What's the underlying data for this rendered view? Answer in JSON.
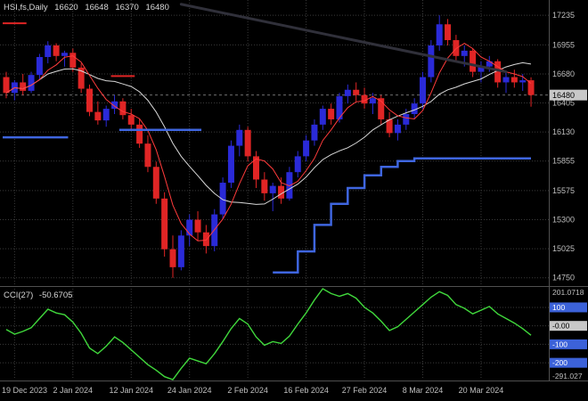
{
  "header": {
    "symbol": "HSI,fs,Daily",
    "open": "16620",
    "high": "16648",
    "low": "16370",
    "close": "16480"
  },
  "indicator": {
    "label": "CCI(27)",
    "value": "-50.6705"
  },
  "colors": {
    "background": "#000000",
    "grid": "#3a3a3a",
    "bull": "#2a2ad8",
    "bear": "#e02525",
    "ma_fast": "#ff3b3b",
    "ma_slow": "#d9d9d9",
    "stop_line": "#3f66e0",
    "trendline": "#30303a",
    "cci_line": "#40d83c",
    "axis_text": "#bfbfbf",
    "price_box_bg": "#c8c8c8",
    "level_box_bg": "#3c62d9"
  },
  "chart_data": {
    "type": "candlestick",
    "title": "HSI,fs,Daily",
    "price_axis": {
      "range": [
        14680,
        17380
      ],
      "labels": [
        17235,
        16955,
        16680,
        16405,
        16130,
        15855,
        15575,
        15300,
        15025,
        14750
      ],
      "current": 16480,
      "current_label": "16480"
    },
    "x_ticks": [
      {
        "index": 1,
        "label": "19 Dec 2023"
      },
      {
        "index": 8,
        "label": "2 Jan 2024"
      },
      {
        "index": 15,
        "label": "12 Jan 2024"
      },
      {
        "index": 22,
        "label": "24 Jan 2024"
      },
      {
        "index": 29,
        "label": "2 Feb 2024"
      },
      {
        "index": 36,
        "label": "16 Feb 2024"
      },
      {
        "index": 43,
        "label": "27 Feb 2024"
      },
      {
        "index": 50,
        "label": "8 Mar 2024"
      },
      {
        "index": 57,
        "label": "20 Mar 2024"
      }
    ],
    "candles": [
      [
        16650,
        16700,
        16450,
        16500
      ],
      [
        16500,
        16620,
        16430,
        16600
      ],
      [
        16600,
        16680,
        16480,
        16520
      ],
      [
        16520,
        16700,
        16500,
        16670
      ],
      [
        16670,
        16870,
        16620,
        16840
      ],
      [
        16840,
        16990,
        16780,
        16950
      ],
      [
        16950,
        16970,
        16800,
        16850
      ],
      [
        16850,
        16900,
        16750,
        16880
      ],
      [
        16880,
        16920,
        16700,
        16740
      ],
      [
        16740,
        16780,
        16500,
        16540
      ],
      [
        16540,
        16580,
        16280,
        16320
      ],
      [
        16320,
        16420,
        16200,
        16240
      ],
      [
        16240,
        16380,
        16180,
        16350
      ],
      [
        16350,
        16480,
        16300,
        16420
      ],
      [
        16420,
        16450,
        16250,
        16290
      ],
      [
        16290,
        16350,
        16150,
        16200
      ],
      [
        16200,
        16260,
        15980,
        16020
      ],
      [
        16020,
        16100,
        15750,
        15800
      ],
      [
        15800,
        15850,
        15450,
        15500
      ],
      [
        15500,
        15560,
        14950,
        15020
      ],
      [
        15020,
        15150,
        14750,
        14850
      ],
      [
        14850,
        15200,
        14820,
        15150
      ],
      [
        15150,
        15350,
        15050,
        15300
      ],
      [
        15300,
        15380,
        15100,
        15180
      ],
      [
        15180,
        15250,
        14980,
        15050
      ],
      [
        15050,
        15400,
        15000,
        15350
      ],
      [
        15350,
        15700,
        15300,
        15650
      ],
      [
        15650,
        16050,
        15600,
        16000
      ],
      [
        16000,
        16200,
        15900,
        16150
      ],
      [
        16150,
        16180,
        15850,
        15900
      ],
      [
        15900,
        15950,
        15600,
        15680
      ],
      [
        15680,
        15750,
        15480,
        15550
      ],
      [
        15550,
        15650,
        15380,
        15620
      ],
      [
        15620,
        15700,
        15450,
        15500
      ],
      [
        15500,
        15800,
        15480,
        15750
      ],
      [
        15750,
        15950,
        15700,
        15900
      ],
      [
        15900,
        16100,
        15850,
        16050
      ],
      [
        16050,
        16250,
        16000,
        16200
      ],
      [
        16200,
        16380,
        16150,
        16350
      ],
      [
        16350,
        16400,
        16200,
        16250
      ],
      [
        16250,
        16500,
        16220,
        16470
      ],
      [
        16470,
        16580,
        16400,
        16530
      ],
      [
        16530,
        16600,
        16420,
        16480
      ],
      [
        16480,
        16550,
        16350,
        16400
      ],
      [
        16400,
        16500,
        16300,
        16450
      ],
      [
        16450,
        16480,
        16200,
        16250
      ],
      [
        16250,
        16320,
        16080,
        16120
      ],
      [
        16120,
        16250,
        16050,
        16200
      ],
      [
        16200,
        16350,
        16150,
        16300
      ],
      [
        16300,
        16450,
        16250,
        16400
      ],
      [
        16400,
        16700,
        16350,
        16650
      ],
      [
        16650,
        17000,
        16600,
        16950
      ],
      [
        16950,
        17235,
        16900,
        17150
      ],
      [
        17150,
        17200,
        16950,
        17000
      ],
      [
        17000,
        17050,
        16800,
        16850
      ],
      [
        16850,
        16950,
        16750,
        16900
      ],
      [
        16900,
        16920,
        16650,
        16700
      ],
      [
        16700,
        16800,
        16600,
        16750
      ],
      [
        16750,
        16850,
        16700,
        16800
      ],
      [
        16800,
        16820,
        16550,
        16600
      ],
      [
        16600,
        16700,
        16500,
        16650
      ],
      [
        16650,
        16720,
        16550,
        16600
      ],
      [
        16600,
        16680,
        16520,
        16620
      ],
      [
        16620,
        16648,
        16370,
        16480
      ]
    ],
    "overlays": {
      "ma_fast_period": 5,
      "ma_slow_period": 13,
      "trendline": {
        "from": {
          "index": 21,
          "price": 17340
        },
        "to": {
          "index": 60,
          "price": 16700
        }
      },
      "stop_segments": [
        {
          "type": "flat",
          "from": 0,
          "to": 7,
          "price": 16080
        },
        {
          "type": "flat",
          "from": 14,
          "to": 23,
          "price": 16150
        },
        {
          "type": "steps",
          "points": [
            [
              32,
              14800
            ],
            [
              35,
              15000
            ],
            [
              37,
              15250
            ],
            [
              39,
              15450
            ],
            [
              41,
              15600
            ],
            [
              43,
              15720
            ],
            [
              45,
              15800
            ],
            [
              47,
              15855
            ],
            [
              49,
              15880
            ],
            [
              63,
              15880
            ]
          ]
        }
      ],
      "red_segments": [
        {
          "from": 0,
          "to": 2,
          "price": 17160
        },
        {
          "from": 13,
          "to": 15,
          "price": 16660
        }
      ]
    },
    "cci": {
      "label": "CCI(27)",
      "current": -50.6705,
      "range": [
        -291.027,
        201.0718
      ],
      "max_label": "201.0718",
      "min_label": "-291.027",
      "levels": [
        {
          "value": 100,
          "label": "100",
          "box": "blue"
        },
        {
          "value": 0,
          "label": "-0.00",
          "box": "silver"
        },
        {
          "value": -100,
          "label": "-100",
          "box": "blue"
        },
        {
          "value": -200,
          "label": "-200",
          "box": "blue"
        }
      ],
      "values": [
        -20,
        -45,
        -30,
        -10,
        40,
        90,
        70,
        60,
        20,
        -40,
        -120,
        -150,
        -110,
        -60,
        -90,
        -130,
        -170,
        -210,
        -240,
        -275,
        -291.027,
        -230,
        -175,
        -190,
        -205,
        -150,
        -85,
        -15,
        40,
        10,
        -60,
        -105,
        -85,
        -95,
        -55,
        10,
        70,
        140,
        201.0718,
        175,
        160,
        175,
        150,
        100,
        70,
        25,
        -25,
        -5,
        35,
        75,
        115,
        155,
        185,
        165,
        115,
        95,
        65,
        85,
        105,
        65,
        40,
        15,
        -15,
        -50.6705
      ]
    }
  }
}
